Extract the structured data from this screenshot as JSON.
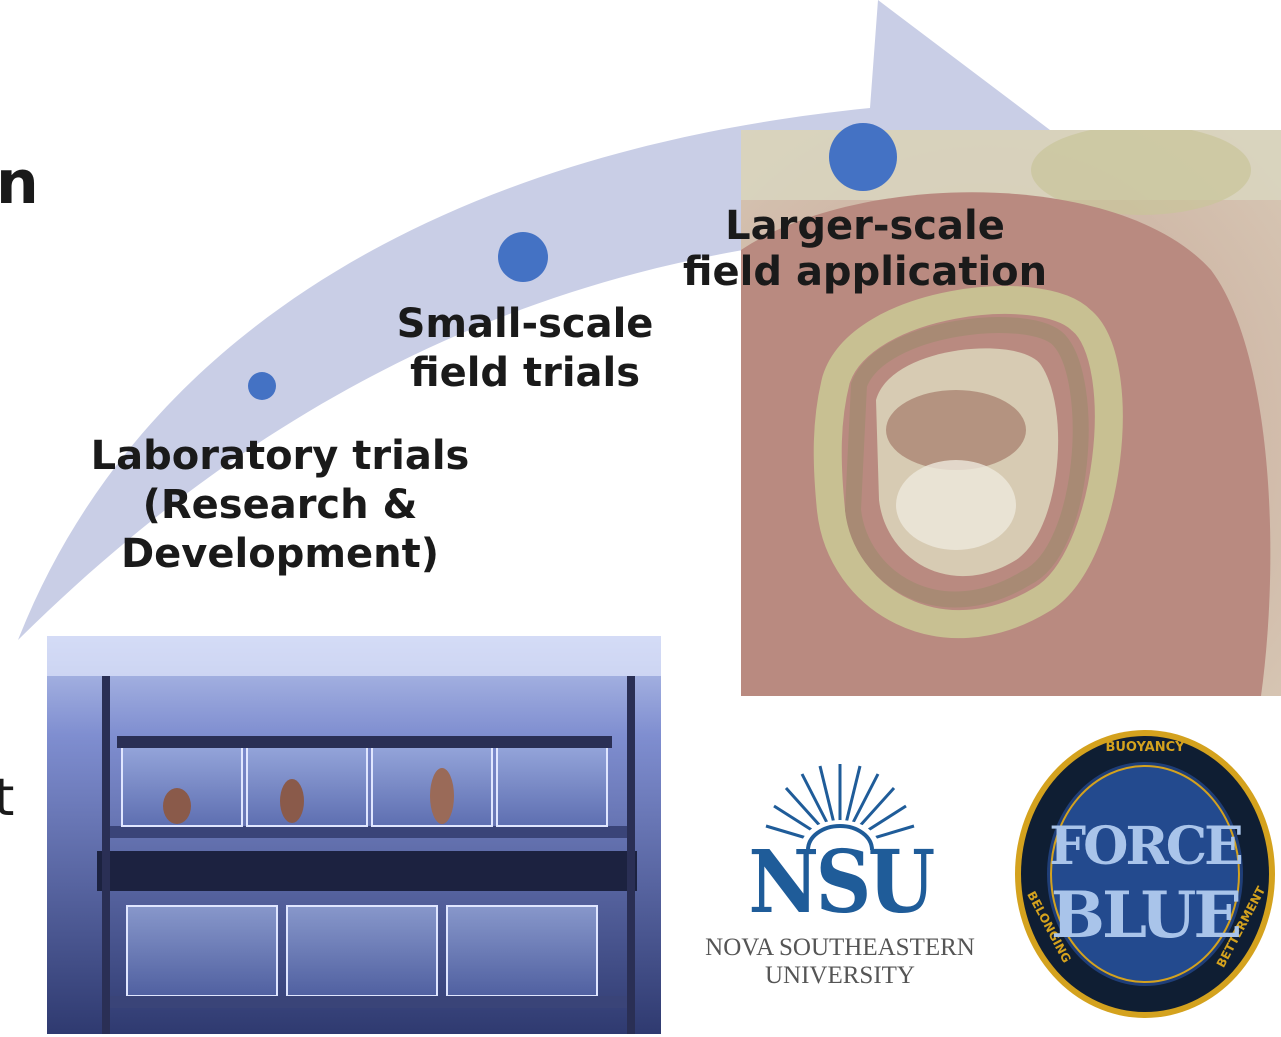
{
  "edge_text": {
    "top": "n",
    "bottom": "t"
  },
  "stages": [
    {
      "lines": [
        "Laboratory trials",
        "(Research &",
        "Development)"
      ]
    },
    {
      "lines": [
        "Small-scale",
        "field trials"
      ]
    },
    {
      "lines": [
        "Larger-scale",
        "field application"
      ]
    }
  ],
  "logos": {
    "nsu": {
      "mark": "NSU",
      "line1": "NOVA SOUTHEASTERN",
      "line2": "UNIVERSITY"
    },
    "force_blue": {
      "top": "BUOYANCY",
      "left": "BELONGING",
      "right": "BETTERMENT",
      "word1": "FORCE",
      "word2": "BLUE"
    }
  },
  "colors": {
    "arrow": "#c9cee6",
    "circle": "#4472c4",
    "nsu_blue": "#1f5c99",
    "fb_navy": "#0f2a4a",
    "fb_gold": "#d4a21e"
  }
}
